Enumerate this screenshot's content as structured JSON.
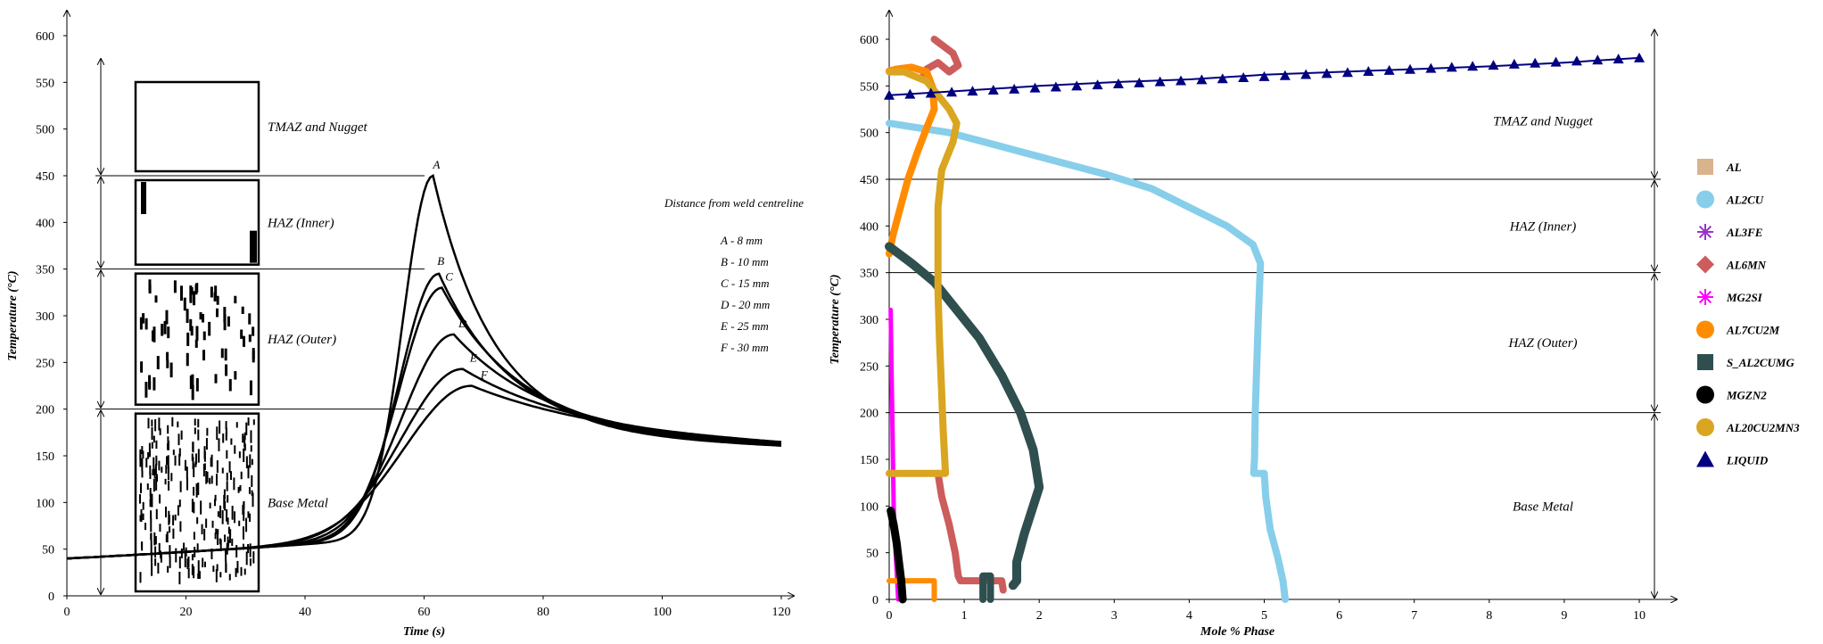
{
  "chart_data": [
    {
      "type": "line",
      "xlabel": "Time (s)",
      "ylabel": "Temperature (°C)",
      "xlim": [
        0,
        120
      ],
      "ylim": [
        0,
        600
      ],
      "x_ticks": [
        "0",
        "20",
        "40",
        "60",
        "80",
        "100",
        "120"
      ],
      "y_ticks": [
        "0",
        "50",
        "100",
        "150",
        "200",
        "250",
        "300",
        "350",
        "400",
        "450",
        "500",
        "550",
        "600"
      ],
      "zone_boundaries": [
        450,
        350,
        200
      ],
      "zones": [
        {
          "label": "TMAZ and Nugget",
          "ymin": 450,
          "ymax": 600,
          "grain": "none"
        },
        {
          "label": "HAZ (Inner)",
          "ymin": 350,
          "ymax": 450,
          "grain": "edge"
        },
        {
          "label": "HAZ (Outer)",
          "ymin": 200,
          "ymax": 350,
          "grain": "sparse"
        },
        {
          "label": "Base Metal",
          "ymin": 0,
          "ymax": 200,
          "grain": "dense"
        }
      ],
      "legend_title": "Distance from weld centreline",
      "legend_entries": [
        "A - 8 mm",
        "B - 10 mm",
        "C - 15 mm",
        "D - 20 mm",
        "E - 25 mm",
        "F - 30 mm"
      ],
      "series": [
        {
          "name": "A",
          "peak_time": 61.5,
          "peak_temp": 450,
          "rise": 5.0,
          "fall": 10
        },
        {
          "name": "B",
          "peak_time": 62.5,
          "peak_temp": 345,
          "rise": 6.5,
          "fall": 12
        },
        {
          "name": "C",
          "peak_time": 63.0,
          "peak_temp": 330,
          "rise": 7.0,
          "fall": 13
        },
        {
          "name": "D",
          "peak_time": 65.0,
          "peak_temp": 280,
          "rise": 8.5,
          "fall": 15
        },
        {
          "name": "E",
          "peak_time": 66.5,
          "peak_temp": 243,
          "rise": 10.0,
          "fall": 18
        },
        {
          "name": "F",
          "peak_time": 68.0,
          "peak_temp": 225,
          "rise": 11.0,
          "fall": 20
        }
      ]
    },
    {
      "type": "line",
      "xlabel": "Mole % Phase",
      "ylabel": "Temperature (°C)",
      "xlim": [
        0,
        10
      ],
      "ylim": [
        0,
        600
      ],
      "x_ticks": [
        "0",
        "1",
        "2",
        "3",
        "4",
        "5",
        "6",
        "7",
        "8",
        "9",
        "10"
      ],
      "y_ticks": [
        "0",
        "50",
        "100",
        "150",
        "200",
        "250",
        "300",
        "350",
        "400",
        "450",
        "500",
        "550",
        "600"
      ],
      "zone_boundaries": [
        450,
        350,
        200
      ],
      "zones": [
        {
          "label": "TMAZ and Nugget",
          "ymin": 450,
          "ymax": 600
        },
        {
          "label": "HAZ (Inner)",
          "ymin": 350,
          "ymax": 450
        },
        {
          "label": "HAZ (Outer)",
          "ymin": 200,
          "ymax": 350
        },
        {
          "label": "Base Metal",
          "ymin": 0,
          "ymax": 200
        }
      ],
      "series": [
        {
          "name": "AL",
          "color": "#D9B38C",
          "marker": "square",
          "width": 4,
          "points": []
        },
        {
          "name": "AL2CU",
          "color": "#87CEEB",
          "marker": "circle",
          "width": 8,
          "points": [
            [
              0,
              510
            ],
            [
              0.8,
              500
            ],
            [
              1.5,
              485
            ],
            [
              2.2,
              470
            ],
            [
              2.9,
              455
            ],
            [
              3.5,
              440
            ],
            [
              4.0,
              420
            ],
            [
              4.5,
              400
            ],
            [
              4.85,
              380
            ],
            [
              4.95,
              360
            ],
            [
              4.92,
              300
            ],
            [
              4.9,
              250
            ],
            [
              4.88,
              200
            ],
            [
              4.87,
              150
            ],
            [
              4.86,
              135
            ],
            [
              5.0,
              135
            ],
            [
              5.02,
              110
            ],
            [
              5.08,
              75
            ],
            [
              5.18,
              45
            ],
            [
              5.25,
              20
            ],
            [
              5.28,
              0
            ]
          ]
        },
        {
          "name": "AL3FE",
          "color": "#9932CC",
          "marker": "asterisk",
          "width": 3,
          "points": [
            [
              0.13,
              20
            ],
            [
              0.13,
              0
            ]
          ]
        },
        {
          "name": "AL6MN",
          "color": "#CD5C5C",
          "marker": "diamond",
          "width": 8,
          "points": [
            [
              0.6,
              600
            ],
            [
              0.85,
              585
            ],
            [
              0.92,
              572
            ],
            [
              0.8,
              565
            ],
            [
              0.65,
              575
            ],
            [
              0.5,
              568
            ],
            [
              0.45,
              560
            ]
          ]
        },
        {
          "name": "AL6MN-low",
          "color": "#CD5C5C",
          "marker": "diamond",
          "width": 8,
          "points": [
            [
              0.65,
              135
            ],
            [
              0.7,
              110
            ],
            [
              0.8,
              80
            ],
            [
              0.88,
              50
            ],
            [
              0.92,
              25
            ],
            [
              0.95,
              20
            ],
            [
              1.5,
              20
            ],
            [
              1.52,
              10
            ]
          ]
        },
        {
          "name": "MG2SI",
          "color": "#FF00FF",
          "marker": "asterisk",
          "width": 5,
          "points": [
            [
              0.02,
              310
            ],
            [
              0.03,
              250
            ],
            [
              0.04,
              200
            ],
            [
              0.05,
              150
            ],
            [
              0.06,
              100
            ],
            [
              0.08,
              60
            ],
            [
              0.1,
              30
            ],
            [
              0.12,
              0
            ]
          ]
        },
        {
          "name": "AL7CU2M",
          "color": "#FF8C00",
          "marker": "circle",
          "width": 8,
          "points": [
            [
              0,
              370
            ],
            [
              0.05,
              390
            ],
            [
              0.15,
              420
            ],
            [
              0.25,
              450
            ],
            [
              0.38,
              480
            ],
            [
              0.5,
              505
            ],
            [
              0.6,
              525
            ],
            [
              0.58,
              548
            ],
            [
              0.5,
              565
            ],
            [
              0.3,
              570
            ],
            [
              0.1,
              568
            ],
            [
              0.0,
              566
            ]
          ]
        },
        {
          "name": "AL7CU2M-low",
          "color": "#FF8C00",
          "marker": "circle",
          "width": 6,
          "points": [
            [
              0,
              20
            ],
            [
              0.6,
              20
            ],
            [
              0.6,
              0
            ]
          ]
        },
        {
          "name": "S_AL2CUMG",
          "color": "#2F4F4F",
          "marker": "square",
          "width": 10,
          "points": [
            [
              0,
              378
            ],
            [
              0.3,
              360
            ],
            [
              0.6,
              340
            ],
            [
              0.9,
              310
            ],
            [
              1.2,
              280
            ],
            [
              1.5,
              240
            ],
            [
              1.75,
              200
            ],
            [
              1.92,
              160
            ],
            [
              2.0,
              120
            ],
            [
              1.92,
              100
            ],
            [
              1.8,
              70
            ],
            [
              1.7,
              40
            ],
            [
              1.7,
              20
            ],
            [
              1.65,
              15
            ]
          ]
        },
        {
          "name": "S_AL2CUMG-low",
          "color": "#2F4F4F",
          "marker": "square",
          "width": 8,
          "points": [
            [
              1.25,
              0
            ],
            [
              1.25,
              25
            ],
            [
              1.35,
              25
            ],
            [
              1.35,
              0
            ]
          ]
        },
        {
          "name": "MGZN2",
          "color": "#000000",
          "marker": "circle",
          "width": 9,
          "points": [
            [
              0.02,
              95
            ],
            [
              0.06,
              80
            ],
            [
              0.1,
              60
            ],
            [
              0.13,
              40
            ],
            [
              0.16,
              20
            ],
            [
              0.18,
              0
            ]
          ]
        },
        {
          "name": "AL20CU2MN3",
          "color": "#DAA520",
          "marker": "circle",
          "width": 8,
          "points": [
            [
              0,
              565
            ],
            [
              0.2,
              565
            ],
            [
              0.5,
              555
            ],
            [
              0.8,
              525
            ],
            [
              0.9,
              510
            ],
            [
              0.85,
              490
            ],
            [
              0.7,
              460
            ],
            [
              0.65,
              420
            ],
            [
              0.65,
              380
            ],
            [
              0.65,
              330
            ],
            [
              0.67,
              280
            ],
            [
              0.7,
              220
            ],
            [
              0.72,
              180
            ],
            [
              0.75,
              135
            ],
            [
              0,
              135
            ]
          ]
        },
        {
          "name": "LIQUID",
          "color": "#000080",
          "marker": "triangle",
          "width": 2,
          "points": [
            [
              0,
              540
            ],
            [
              1,
              545
            ],
            [
              2,
              550
            ],
            [
              3,
              554
            ],
            [
              4,
              557
            ],
            [
              5,
              562
            ],
            [
              6,
              565
            ],
            [
              7,
              568
            ],
            [
              8,
              571
            ],
            [
              9,
              575
            ],
            [
              10,
              580
            ]
          ]
        }
      ],
      "legend_entries": [
        "AL",
        "AL2CU",
        "AL3FE",
        "AL6MN",
        "MG2SI",
        "AL7CU2M",
        "S_AL2CUMG",
        "MGZN2",
        "AL20CU2MN3",
        "LIQUID"
      ]
    }
  ]
}
